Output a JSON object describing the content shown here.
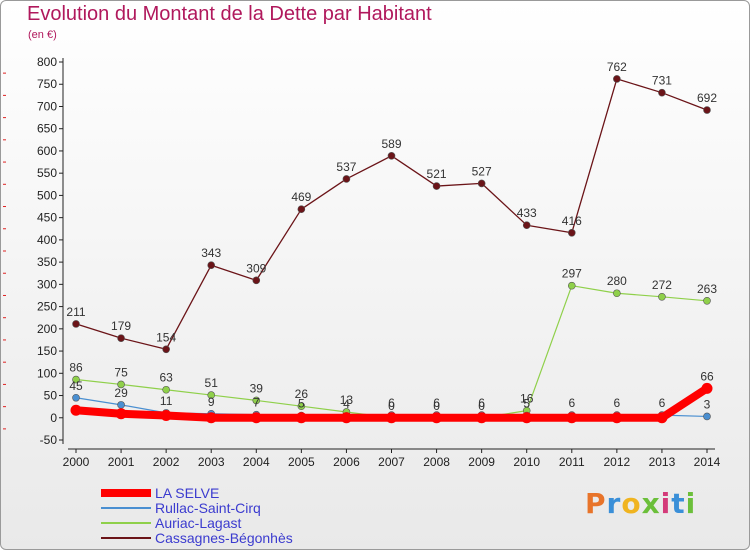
{
  "title": "Evolution du Montant de la Dette par Habitant",
  "unit": "(en €)",
  "logo": {
    "text": "Proxiti",
    "colors": [
      "#e8742a",
      "#3a8fd8",
      "#f0b420",
      "#6bbf3a",
      "#d43b7a",
      "#3a8fd8",
      "#6bbf3a"
    ]
  },
  "chart_data": {
    "type": "line",
    "title": "Evolution du Montant de la Dette par Habitant",
    "ylabel": "(en €)",
    "xlabel": "",
    "x": [
      2000,
      2001,
      2002,
      2003,
      2004,
      2005,
      2006,
      2007,
      2008,
      2009,
      2010,
      2011,
      2012,
      2013,
      2014
    ],
    "x_ticks": [
      "2000",
      "2001",
      "2002",
      "2003",
      "2004",
      "2005",
      "2006",
      "2007",
      "2008",
      "2009",
      "2010",
      "2011",
      "2012",
      "2013",
      "2014"
    ],
    "ylim": [
      -50,
      800
    ],
    "y_ticks": [
      "-50",
      "0",
      "50",
      "100",
      "150",
      "200",
      "250",
      "300",
      "350",
      "400",
      "450",
      "500",
      "550",
      "600",
      "650",
      "700",
      "750",
      "800"
    ],
    "grid": false,
    "legend_position": "bottom-left",
    "series": [
      {
        "name": "LA SELVE",
        "color": "#ff0000",
        "values": [
          17,
          9,
          5,
          0,
          0,
          0,
          0,
          0,
          0,
          0,
          0,
          0,
          0,
          0,
          66
        ],
        "labels": [
          "",
          "",
          "",
          "",
          "",
          "",
          "",
          "",
          "",
          "",
          "",
          "",
          "",
          "",
          "66"
        ]
      },
      {
        "name": "Rullac-Saint-Cirq",
        "color": "#4a8fd1",
        "values": [
          45,
          29,
          11,
          9,
          7,
          5,
          4,
          6,
          6,
          6,
          5,
          6,
          6,
          6,
          3
        ],
        "labels": [
          "45",
          "29",
          "11",
          "9",
          "7",
          "5",
          "4",
          "6",
          "6",
          "6",
          "5",
          "6",
          "6",
          "6",
          "3"
        ]
      },
      {
        "name": "Auriac-Lagast",
        "color": "#8fd04a",
        "values": [
          86,
          75,
          63,
          51,
          39,
          26,
          13,
          0,
          0,
          0,
          16,
          297,
          280,
          272,
          263
        ],
        "labels": [
          "86",
          "75",
          "63",
          "51",
          "39",
          "26",
          "13",
          "0",
          "0",
          "0",
          "16",
          "297",
          "280",
          "272",
          "263"
        ]
      },
      {
        "name": "Cassagnes-Bégonhès",
        "color": "#6b1418",
        "values": [
          211,
          179,
          154,
          343,
          309,
          469,
          537,
          589,
          521,
          527,
          433,
          416,
          762,
          731,
          692
        ],
        "labels": [
          "211",
          "179",
          "154",
          "343",
          "309",
          "469",
          "537",
          "589",
          "521",
          "527",
          "433",
          "416",
          "762",
          "731",
          "692"
        ]
      }
    ]
  }
}
